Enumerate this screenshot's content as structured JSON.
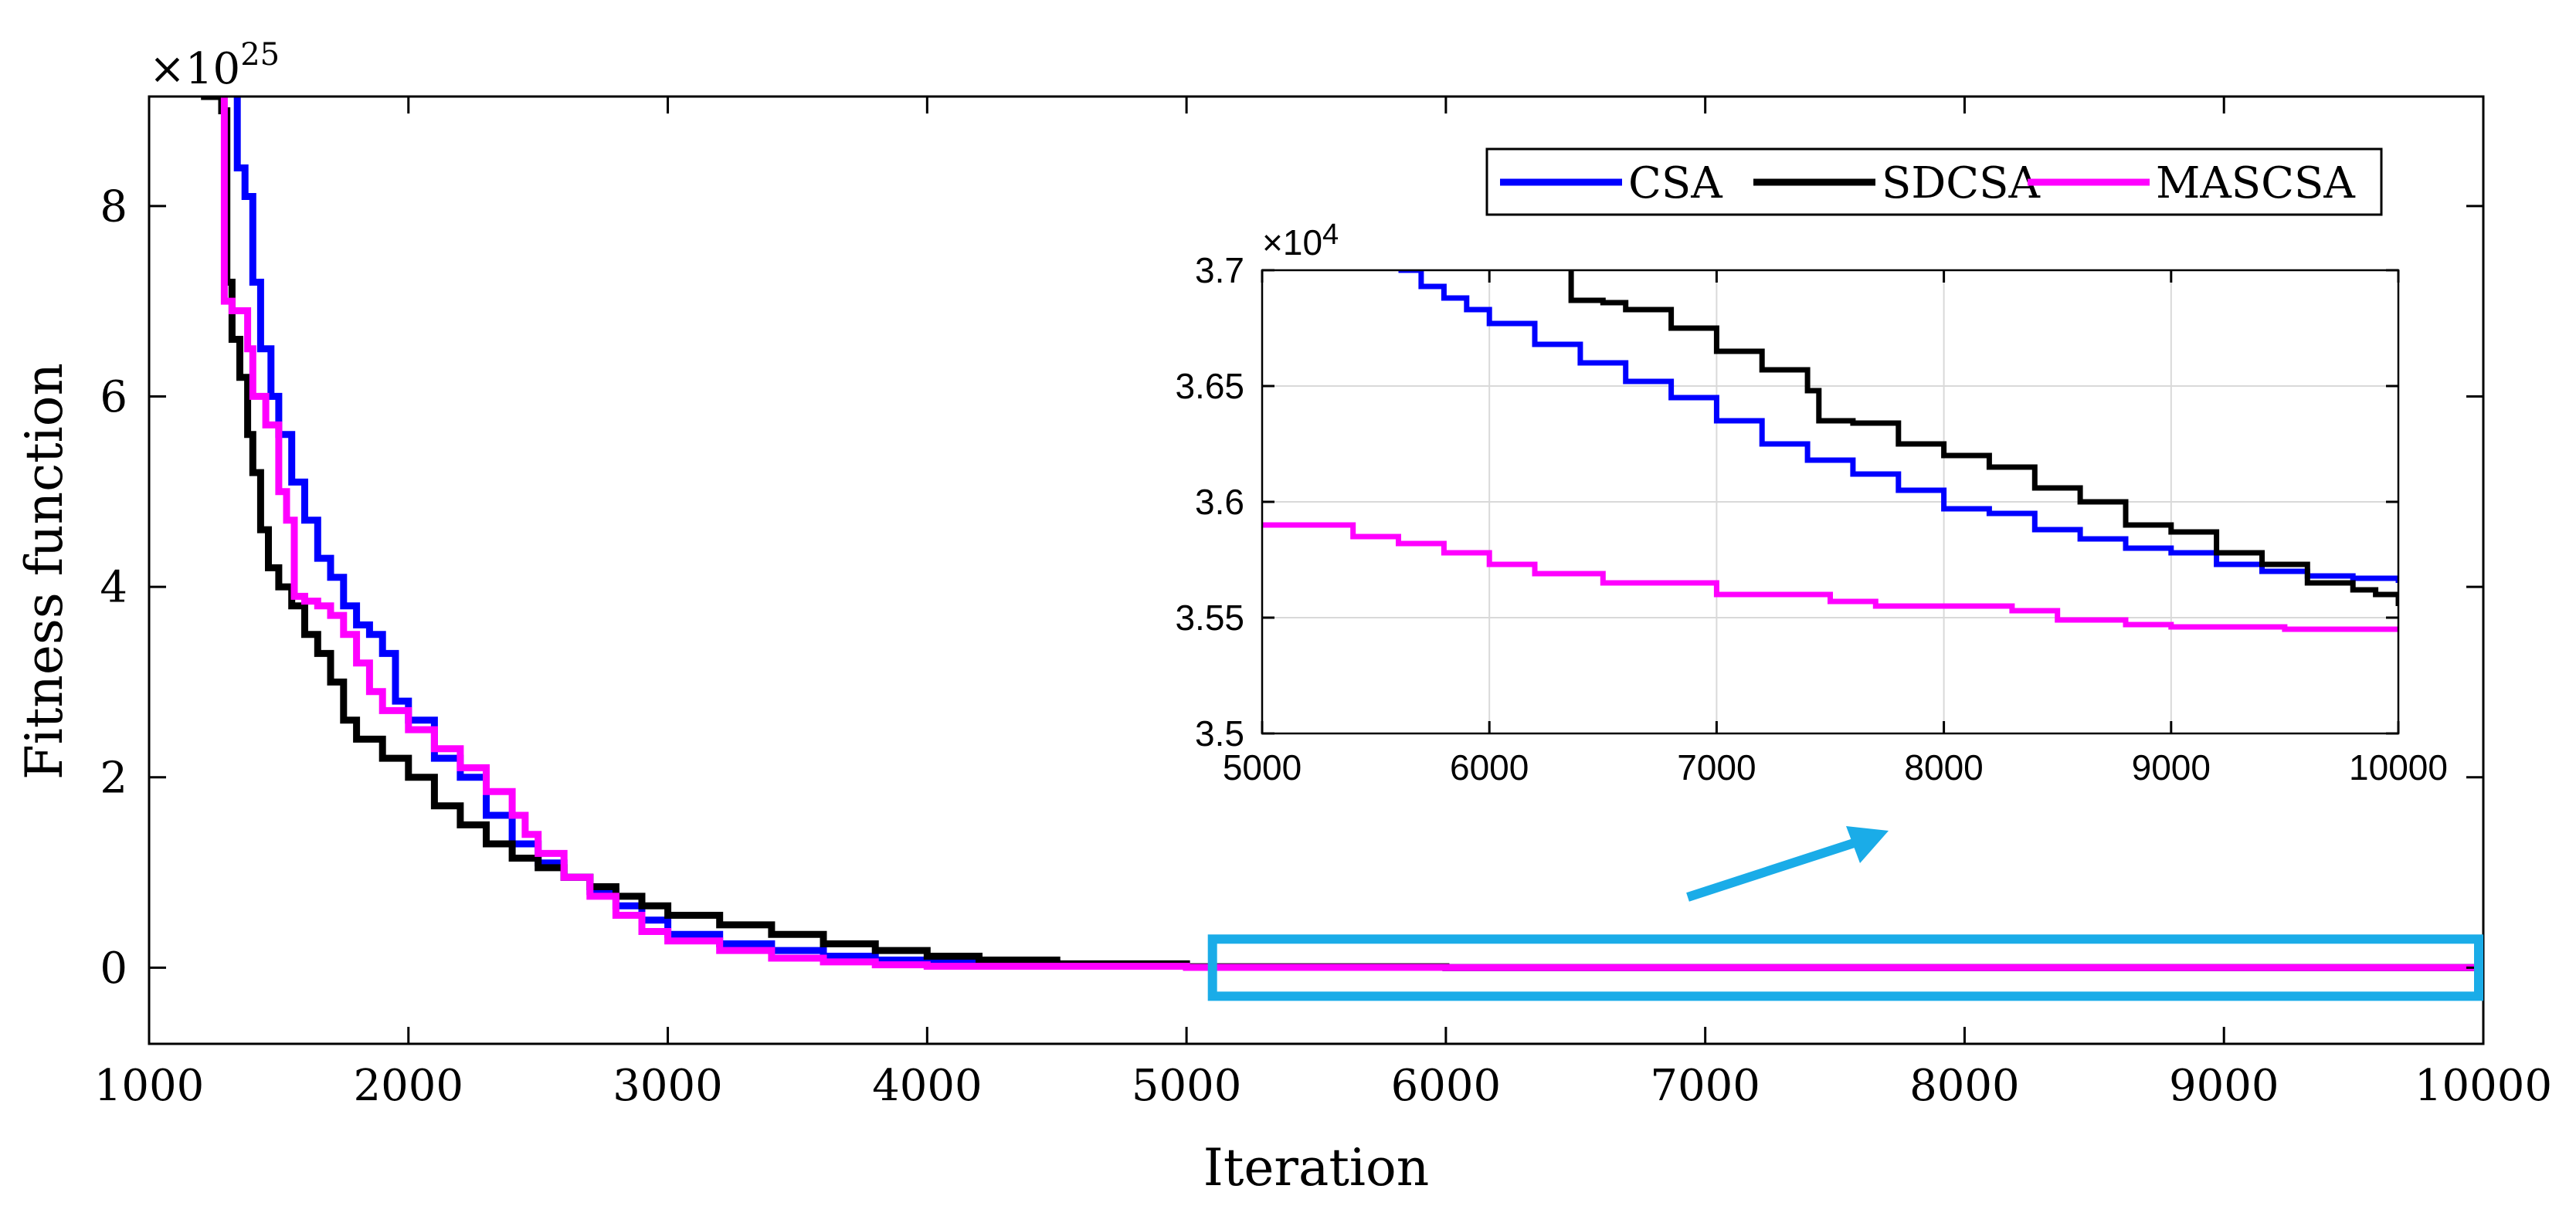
{
  "chart_data": [
    {
      "id": "main",
      "type": "line",
      "title": "",
      "xlabel": "Iteration",
      "ylabel": "Fitness function",
      "xlim": [
        1000,
        10000
      ],
      "ylim": [
        -0.8,
        9.15
      ],
      "y_exponent_label": "×10",
      "y_exponent_value": "25",
      "grid": false,
      "xticks": [
        1000,
        2000,
        3000,
        4000,
        5000,
        6000,
        7000,
        8000,
        9000,
        10000
      ],
      "xtick_labels": [
        "1000",
        "2000",
        "3000",
        "4000",
        "5000",
        "6000",
        "7000",
        "8000",
        "9000",
        "10000"
      ],
      "yticks": [
        0,
        2,
        4,
        6,
        8
      ],
      "ytick_labels": [
        "0",
        "2",
        "4",
        "6",
        "8"
      ],
      "legend": {
        "position": "top-right",
        "entries": [
          "CSA",
          "SDCSA",
          "MASCSA"
        ]
      },
      "series": [
        {
          "name": "CSA",
          "color": "#0000ff",
          "points": [
            [
              1330,
              9.15
            ],
            [
              1340,
              8.4
            ],
            [
              1370,
              8.1
            ],
            [
              1400,
              7.2
            ],
            [
              1430,
              6.5
            ],
            [
              1470,
              6.0
            ],
            [
              1500,
              5.6
            ],
            [
              1550,
              5.1
            ],
            [
              1600,
              4.7
            ],
            [
              1650,
              4.3
            ],
            [
              1700,
              4.1
            ],
            [
              1750,
              3.8
            ],
            [
              1800,
              3.6
            ],
            [
              1850,
              3.5
            ],
            [
              1900,
              3.3
            ],
            [
              1950,
              2.8
            ],
            [
              2000,
              2.6
            ],
            [
              2100,
              2.2
            ],
            [
              2200,
              2.0
            ],
            [
              2300,
              1.6
            ],
            [
              2400,
              1.3
            ],
            [
              2500,
              1.1
            ],
            [
              2600,
              0.95
            ],
            [
              2700,
              0.8
            ],
            [
              2800,
              0.65
            ],
            [
              2900,
              0.5
            ],
            [
              3000,
              0.35
            ],
            [
              3200,
              0.25
            ],
            [
              3400,
              0.18
            ],
            [
              3600,
              0.12
            ],
            [
              3800,
              0.08
            ],
            [
              4000,
              0.05
            ],
            [
              4500,
              0.02
            ],
            [
              5000,
              0.005
            ],
            [
              6000,
              0.0
            ],
            [
              10000,
              0.0
            ]
          ]
        },
        {
          "name": "SDCSA",
          "color": "#000000",
          "points": [
            [
              1200,
              9.15
            ],
            [
              1280,
              9.0
            ],
            [
              1300,
              7.2
            ],
            [
              1320,
              6.6
            ],
            [
              1350,
              6.2
            ],
            [
              1380,
              5.6
            ],
            [
              1400,
              5.2
            ],
            [
              1430,
              4.6
            ],
            [
              1460,
              4.2
            ],
            [
              1500,
              4.0
            ],
            [
              1550,
              3.8
            ],
            [
              1600,
              3.5
            ],
            [
              1650,
              3.3
            ],
            [
              1700,
              3.0
            ],
            [
              1750,
              2.6
            ],
            [
              1800,
              2.4
            ],
            [
              1900,
              2.2
            ],
            [
              2000,
              2.0
            ],
            [
              2100,
              1.7
            ],
            [
              2200,
              1.5
            ],
            [
              2300,
              1.3
            ],
            [
              2400,
              1.15
            ],
            [
              2500,
              1.05
            ],
            [
              2600,
              0.95
            ],
            [
              2700,
              0.85
            ],
            [
              2800,
              0.75
            ],
            [
              2900,
              0.65
            ],
            [
              3000,
              0.55
            ],
            [
              3200,
              0.45
            ],
            [
              3400,
              0.35
            ],
            [
              3600,
              0.25
            ],
            [
              3800,
              0.18
            ],
            [
              4000,
              0.12
            ],
            [
              4200,
              0.08
            ],
            [
              4500,
              0.04
            ],
            [
              5000,
              0.01
            ],
            [
              6000,
              0.0
            ],
            [
              10000,
              0.0
            ]
          ]
        },
        {
          "name": "MASCSA",
          "color": "#ff00ff",
          "points": [
            [
              1280,
              9.15
            ],
            [
              1290,
              7.0
            ],
            [
              1320,
              6.9
            ],
            [
              1380,
              6.5
            ],
            [
              1400,
              6.0
            ],
            [
              1450,
              5.7
            ],
            [
              1500,
              5.0
            ],
            [
              1530,
              4.7
            ],
            [
              1560,
              3.9
            ],
            [
              1600,
              3.85
            ],
            [
              1650,
              3.8
            ],
            [
              1700,
              3.7
            ],
            [
              1750,
              3.5
            ],
            [
              1800,
              3.2
            ],
            [
              1850,
              2.9
            ],
            [
              1900,
              2.7
            ],
            [
              2000,
              2.5
            ],
            [
              2100,
              2.3
            ],
            [
              2200,
              2.1
            ],
            [
              2300,
              1.85
            ],
            [
              2400,
              1.6
            ],
            [
              2450,
              1.4
            ],
            [
              2500,
              1.2
            ],
            [
              2600,
              0.95
            ],
            [
              2700,
              0.75
            ],
            [
              2800,
              0.55
            ],
            [
              2900,
              0.38
            ],
            [
              3000,
              0.28
            ],
            [
              3200,
              0.18
            ],
            [
              3400,
              0.1
            ],
            [
              3600,
              0.06
            ],
            [
              3800,
              0.03
            ],
            [
              4000,
              0.015
            ],
            [
              5000,
              0.003
            ],
            [
              6000,
              0.0
            ],
            [
              10000,
              0.0
            ]
          ]
        }
      ]
    },
    {
      "id": "inset",
      "type": "line",
      "title": "",
      "xlabel": "",
      "ylabel": "",
      "xlim": [
        5000,
        10000
      ],
      "ylim": [
        3.5,
        3.7
      ],
      "y_exponent_label": "×10",
      "y_exponent_value": "4",
      "grid": true,
      "xticks": [
        5000,
        6000,
        7000,
        8000,
        9000,
        10000
      ],
      "xtick_labels": [
        "5000",
        "6000",
        "7000",
        "8000",
        "9000",
        "10000"
      ],
      "yticks": [
        3.5,
        3.55,
        3.6,
        3.65,
        3.7
      ],
      "ytick_labels": [
        "3.5",
        "3.55",
        "3.6",
        "3.65",
        "3.7"
      ],
      "series": [
        {
          "name": "CSA",
          "color": "#0000ff",
          "points": [
            [
              5600,
              3.7
            ],
            [
              5700,
              3.693
            ],
            [
              5800,
              3.688
            ],
            [
              5900,
              3.683
            ],
            [
              6000,
              3.677
            ],
            [
              6200,
              3.668
            ],
            [
              6400,
              3.66
            ],
            [
              6600,
              3.652
            ],
            [
              6800,
              3.645
            ],
            [
              7000,
              3.635
            ],
            [
              7200,
              3.625
            ],
            [
              7400,
              3.618
            ],
            [
              7600,
              3.612
            ],
            [
              7800,
              3.605
            ],
            [
              8000,
              3.597
            ],
            [
              8200,
              3.595
            ],
            [
              8400,
              3.588
            ],
            [
              8600,
              3.584
            ],
            [
              8800,
              3.58
            ],
            [
              9000,
              3.578
            ],
            [
              9200,
              3.573
            ],
            [
              9400,
              3.57
            ],
            [
              9600,
              3.568
            ],
            [
              9800,
              3.567
            ],
            [
              10000,
              3.565
            ]
          ]
        },
        {
          "name": "SDCSA",
          "color": "#000000",
          "points": [
            [
              6350,
              3.7
            ],
            [
              6360,
              3.687
            ],
            [
              6500,
              3.686
            ],
            [
              6600,
              3.683
            ],
            [
              6800,
              3.675
            ],
            [
              7000,
              3.665
            ],
            [
              7200,
              3.657
            ],
            [
              7400,
              3.648
            ],
            [
              7450,
              3.635
            ],
            [
              7600,
              3.634
            ],
            [
              7800,
              3.625
            ],
            [
              8000,
              3.62
            ],
            [
              8200,
              3.615
            ],
            [
              8400,
              3.606
            ],
            [
              8600,
              3.6
            ],
            [
              8800,
              3.59
            ],
            [
              9000,
              3.587
            ],
            [
              9200,
              3.578
            ],
            [
              9400,
              3.573
            ],
            [
              9600,
              3.565
            ],
            [
              9800,
              3.562
            ],
            [
              9900,
              3.56
            ],
            [
              10000,
              3.555
            ]
          ]
        },
        {
          "name": "MASCSA",
          "color": "#ff00ff",
          "points": [
            [
              5000,
              3.59
            ],
            [
              5200,
              3.59
            ],
            [
              5400,
              3.585
            ],
            [
              5600,
              3.582
            ],
            [
              5800,
              3.578
            ],
            [
              6000,
              3.573
            ],
            [
              6200,
              3.569
            ],
            [
              6500,
              3.565
            ],
            [
              7000,
              3.56
            ],
            [
              7500,
              3.557
            ],
            [
              7700,
              3.555
            ],
            [
              8000,
              3.555
            ],
            [
              8300,
              3.553
            ],
            [
              8500,
              3.549
            ],
            [
              8800,
              3.547
            ],
            [
              9000,
              3.546
            ],
            [
              9500,
              3.545
            ],
            [
              10000,
              3.545
            ]
          ]
        }
      ]
    }
  ],
  "annotations": {
    "highlight_color": "#1aace8",
    "arrow_color": "#1aace8",
    "highlight_region": {
      "x_from": 5100,
      "x_to": 10000,
      "y_from": -0.3,
      "y_to": 0.3
    }
  }
}
